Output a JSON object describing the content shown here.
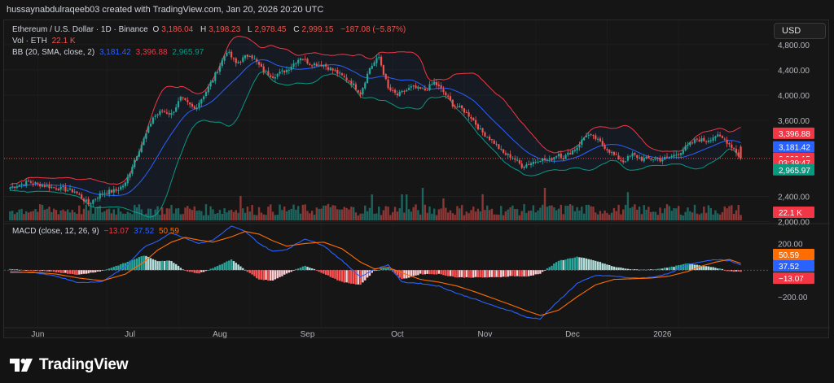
{
  "header": {
    "text": "hussaynabdulraqeeb03 created with TradingView.com, Jan 20, 2026 20:20 UTC"
  },
  "legend": {
    "symbol": "Ethereum / U.S. Dollar · 1D · Binance",
    "o_label": "O",
    "o": "3,186.04",
    "h_label": "H",
    "h": "3,198.23",
    "l_label": "L",
    "l": "2,978.45",
    "c_label": "C",
    "c": "2,999.15",
    "change": "−187.08 (−5.87%)",
    "vol_label": "Vol · ETH",
    "vol": "22.1 K",
    "bb_label": "BB (20, SMA, close, 2)",
    "bb_basis": "3,181.42",
    "bb_upper": "3,396.88",
    "bb_lower": "2,965.97",
    "macd_label": "MACD (close, 12, 26, 9)",
    "macd_hist": "−13.07",
    "macd_line": "37.52",
    "macd_signal": "50.59"
  },
  "currency_button": "USD",
  "brand": "TradingView",
  "colors": {
    "up": "#26a69a",
    "down": "#ef5350",
    "bb_basis": "#2962ff",
    "bb_band": "#f23645",
    "bb_lower": "#089981",
    "macd_line": "#2962ff",
    "macd_signal": "#ff6d00",
    "badge_red": "#f23645",
    "badge_blue": "#2962ff",
    "badge_green": "#089981",
    "badge_orange": "#ff6d00"
  },
  "chart_data": {
    "type": "candlestick",
    "x_labels": [
      "Jun",
      "Jul",
      "Aug",
      "Sep",
      "Oct",
      "Nov",
      "Dec",
      "2026"
    ],
    "price_axis_ticks": [
      "4,800.00",
      "4,400.00",
      "4,000.00",
      "3,600.00",
      "2,400.00",
      "2,000.00"
    ],
    "price_axis_values": [
      4800,
      4400,
      4000,
      3600,
      2400,
      2000
    ],
    "price_badges": [
      {
        "label": "3,396.88",
        "value": 3396.88,
        "color": "#f23645"
      },
      {
        "label": "3,181.42",
        "value": 3181.42,
        "color": "#2962ff"
      },
      {
        "label": "2,999.15",
        "value": 2999.15,
        "color": "#f23645"
      },
      {
        "label": "03:39:47",
        "value": 2930,
        "color": "#f23645"
      },
      {
        "label": "2,965.97",
        "value": 2820,
        "color": "#089981"
      }
    ],
    "volume_badge": "22.1 K",
    "macd_axis_ticks": [
      "200.00",
      "−200.00"
    ],
    "macd_axis_values": [
      200,
      -200
    ],
    "macd_badges": [
      {
        "label": "50.59",
        "value": 88,
        "color": "#ff6d00"
      },
      {
        "label": "37.52",
        "value": 37.52,
        "color": "#2962ff"
      },
      {
        "label": "−13.07",
        "value": -13.07,
        "color": "#f23645"
      }
    ],
    "price_anchors": [
      [
        0,
        2540
      ],
      [
        8,
        2630
      ],
      [
        16,
        2560
      ],
      [
        22,
        2520
      ],
      [
        28,
        2480
      ],
      [
        34,
        2280
      ],
      [
        40,
        2460
      ],
      [
        46,
        2490
      ],
      [
        50,
        2600
      ],
      [
        54,
        2980
      ],
      [
        58,
        3300
      ],
      [
        62,
        3650
      ],
      [
        66,
        3750
      ],
      [
        70,
        3700
      ],
      [
        74,
        3950
      ],
      [
        80,
        3780
      ],
      [
        84,
        4000
      ],
      [
        88,
        4250
      ],
      [
        94,
        4700
      ],
      [
        98,
        4500
      ],
      [
        104,
        4650
      ],
      [
        110,
        4380
      ],
      [
        114,
        4300
      ],
      [
        120,
        4400
      ],
      [
        126,
        4600
      ],
      [
        130,
        4500
      ],
      [
        136,
        4480
      ],
      [
        142,
        4350
      ],
      [
        148,
        4200
      ],
      [
        152,
        4030
      ],
      [
        156,
        4430
      ],
      [
        160,
        4600
      ],
      [
        164,
        4100
      ],
      [
        168,
        4000
      ],
      [
        174,
        4120
      ],
      [
        180,
        4080
      ],
      [
        184,
        4200
      ],
      [
        188,
        4050
      ],
      [
        192,
        3850
      ],
      [
        196,
        3780
      ],
      [
        200,
        3650
      ],
      [
        204,
        3440
      ],
      [
        210,
        3250
      ],
      [
        214,
        3080
      ],
      [
        218,
        3020
      ],
      [
        222,
        2880
      ],
      [
        226,
        2930
      ],
      [
        230,
        2990
      ],
      [
        234,
        2970
      ],
      [
        238,
        3080
      ],
      [
        240,
        3010
      ],
      [
        246,
        3180
      ],
      [
        250,
        3380
      ],
      [
        254,
        3310
      ],
      [
        258,
        3180
      ],
      [
        262,
        3050
      ],
      [
        266,
        2950
      ],
      [
        270,
        3060
      ],
      [
        274,
        2990
      ],
      [
        278,
        3000
      ],
      [
        282,
        2980
      ],
      [
        286,
        3020
      ],
      [
        290,
        3080
      ],
      [
        294,
        3200
      ],
      [
        298,
        3300
      ],
      [
        302,
        3280
      ],
      [
        306,
        3360
      ],
      [
        310,
        3300
      ],
      [
        314,
        3150
      ],
      [
        317,
        2999
      ]
    ],
    "macd_anchors": [
      [
        0,
        -10,
        -18
      ],
      [
        10,
        -20,
        -15
      ],
      [
        20,
        -45,
        -30
      ],
      [
        30,
        -95,
        -60
      ],
      [
        40,
        -85,
        -80
      ],
      [
        50,
        25,
        -30
      ],
      [
        58,
        170,
        60
      ],
      [
        64,
        220,
        150
      ],
      [
        70,
        280,
        210
      ],
      [
        76,
        240,
        245
      ],
      [
        82,
        200,
        225
      ],
      [
        88,
        225,
        210
      ],
      [
        96,
        330,
        250
      ],
      [
        102,
        290,
        290
      ],
      [
        108,
        200,
        270
      ],
      [
        114,
        140,
        220
      ],
      [
        120,
        155,
        180
      ],
      [
        128,
        235,
        200
      ],
      [
        136,
        185,
        210
      ],
      [
        144,
        70,
        160
      ],
      [
        152,
        -50,
        60
      ],
      [
        158,
        5,
        10
      ],
      [
        164,
        40,
        20
      ],
      [
        170,
        -90,
        -20
      ],
      [
        178,
        -100,
        -70
      ],
      [
        186,
        -120,
        -90
      ],
      [
        194,
        -175,
        -120
      ],
      [
        202,
        -220,
        -165
      ],
      [
        210,
        -270,
        -215
      ],
      [
        218,
        -310,
        -265
      ],
      [
        224,
        -355,
        -305
      ],
      [
        230,
        -365,
        -340
      ],
      [
        238,
        -230,
        -300
      ],
      [
        246,
        -100,
        -200
      ],
      [
        254,
        -40,
        -110
      ],
      [
        262,
        -45,
        -70
      ],
      [
        270,
        -60,
        -65
      ],
      [
        278,
        -55,
        -60
      ],
      [
        286,
        -25,
        -45
      ],
      [
        294,
        40,
        -10
      ],
      [
        300,
        65,
        30
      ],
      [
        306,
        80,
        60
      ],
      [
        312,
        70,
        80
      ],
      [
        317,
        37.52,
        50.59
      ]
    ]
  }
}
